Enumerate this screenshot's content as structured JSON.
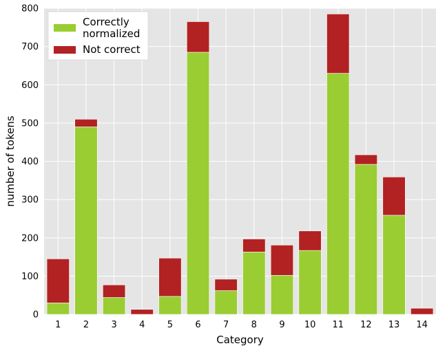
{
  "chart_data": {
    "type": "bar",
    "stacked": true,
    "categories": [
      "1",
      "2",
      "3",
      "4",
      "5",
      "6",
      "7",
      "8",
      "9",
      "10",
      "11",
      "12",
      "13",
      "14"
    ],
    "series": [
      {
        "name": "Correctly normalized",
        "color": "#9acd32",
        "values": [
          30,
          490,
          44,
          0,
          47,
          685,
          62,
          163,
          102,
          167,
          630,
          392,
          259,
          0
        ]
      },
      {
        "name": "Not correct",
        "color": "#b22222",
        "values": [
          115,
          20,
          33,
          13,
          100,
          80,
          30,
          34,
          79,
          51,
          155,
          25,
          100,
          16
        ]
      }
    ],
    "legend_lines": [
      [
        "Correctly",
        "normalized"
      ],
      [
        "Not correct"
      ]
    ],
    "xlabel": "Category",
    "ylabel": "number of tokens",
    "ylim": [
      0,
      800
    ],
    "yticks": [
      0,
      100,
      200,
      300,
      400,
      500,
      600,
      700,
      800
    ],
    "grid": true,
    "background": "#e5e5e5",
    "legend_position": "top-left"
  }
}
